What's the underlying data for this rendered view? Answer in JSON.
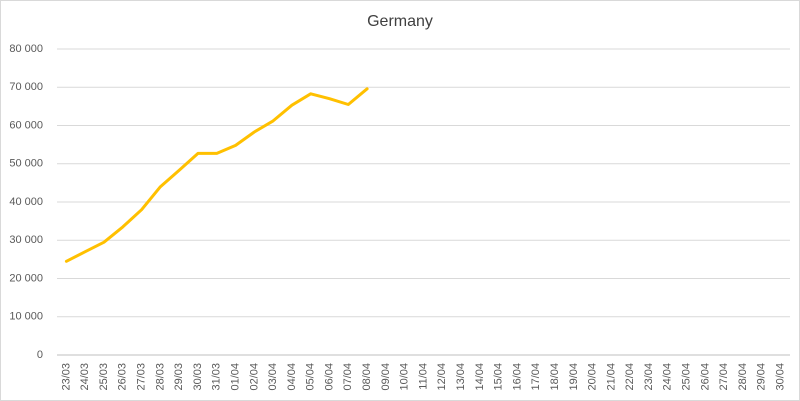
{
  "chart_data": {
    "type": "line",
    "title": "Germany",
    "categories": [
      "23/03",
      "24/03",
      "25/03",
      "26/03",
      "27/03",
      "28/03",
      "29/03",
      "30/03",
      "31/03",
      "01/04",
      "02/04",
      "03/04",
      "04/04",
      "05/04",
      "06/04",
      "07/04",
      "08/04",
      "09/04",
      "10/04",
      "11/04",
      "12/04",
      "13/04",
      "14/04",
      "15/04",
      "16/04",
      "17/04",
      "18/04",
      "19/04",
      "20/04",
      "21/04",
      "22/04",
      "23/04",
      "24/04",
      "25/04",
      "26/04",
      "27/04",
      "28/04",
      "29/04",
      "30/04"
    ],
    "series": [
      {
        "name": "Germany",
        "color": "#ffc000",
        "values": [
          24500,
          27000,
          29500,
          33500,
          38000,
          44000,
          48300,
          52700,
          52700,
          54800,
          58300,
          61200,
          65300,
          68300,
          67000,
          65500,
          69600,
          null,
          null,
          null,
          null,
          null,
          null,
          null,
          null,
          null,
          null,
          null,
          null,
          null,
          null,
          null,
          null,
          null,
          null,
          null,
          null,
          null,
          null
        ]
      }
    ],
    "ylim": [
      0,
      80000
    ],
    "yticks": [
      0,
      {
        "value": 10000,
        "label": "10 000"
      },
      {
        "value": 20000,
        "label": "20 000"
      },
      {
        "value": 30000,
        "label": "30 000"
      },
      {
        "value": 40000,
        "label": "40 000"
      },
      {
        "value": 50000,
        "label": "50 000"
      },
      {
        "value": 60000,
        "label": "60 000"
      },
      {
        "value": 70000,
        "label": "70 000"
      },
      {
        "value": 80000,
        "label": "80 000"
      }
    ],
    "grid": true
  }
}
